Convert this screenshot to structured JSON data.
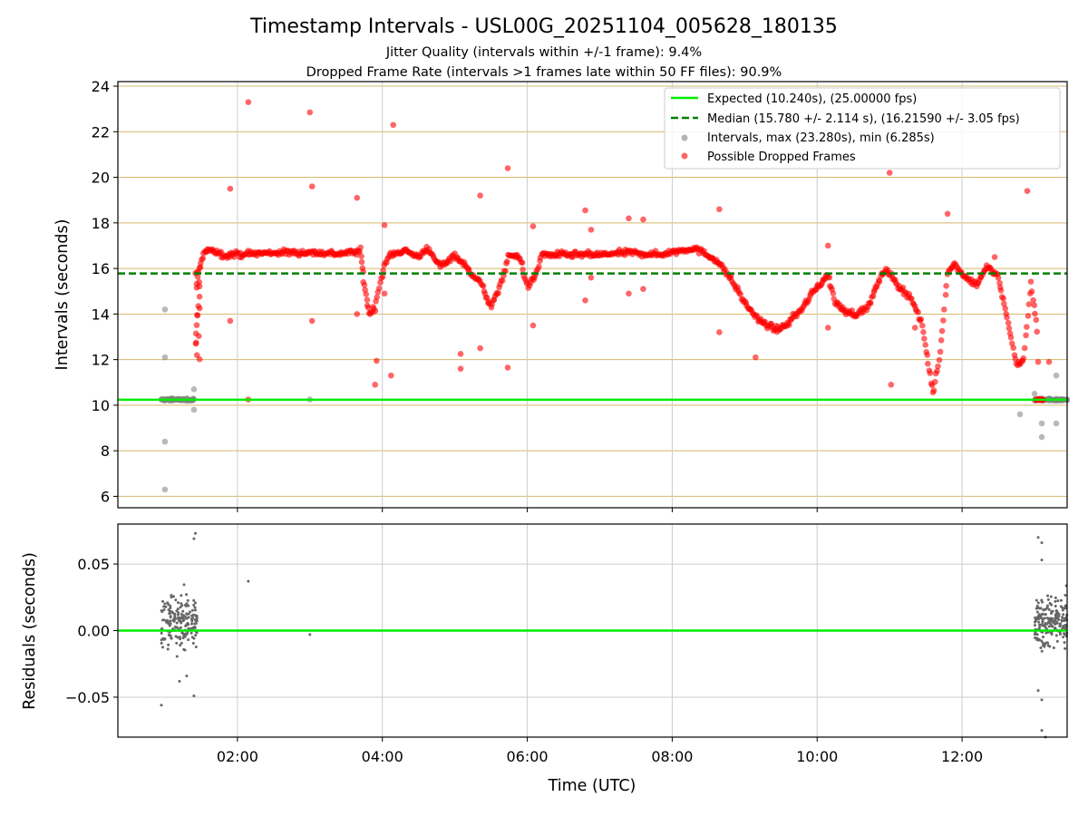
{
  "figure": {
    "title": "Timestamp Intervals - USL00G_20251104_005628_180135",
    "subtitle_1": "Jitter Quality (intervals within +/-1 frame): 9.4%",
    "subtitle_2": "Dropped Frame Rate (intervals >1 frames late within 50 FF files): 90.9%"
  },
  "colors": {
    "expected": "#00ee00",
    "median": "#008000",
    "intervals": "#808080",
    "dropped": "#ff0000",
    "hgrid": "#d4b86a",
    "vgrid": "#cccccc",
    "residual": "#666666"
  },
  "chart_data": [
    {
      "type": "scatter",
      "id": "intervals",
      "xlabel": "",
      "ylabel": "Intervals (seconds)",
      "x_unit": "hours UTC",
      "xlim": [
        0.35,
        13.45
      ],
      "ylim": [
        5.5,
        24.2
      ],
      "yticks": [
        6,
        8,
        10,
        12,
        14,
        16,
        18,
        20,
        22,
        24
      ],
      "xticks": [
        2,
        4,
        6,
        8,
        10,
        12
      ],
      "grid": true,
      "legend_position": "top-right",
      "legend": [
        "Expected (10.240s), (25.00000 fps)",
        "Median (15.780 +/- 2.114 s), (16.21590 +/- 3.05 fps)",
        "Intervals, max (23.280s), min (6.285s)",
        "Possible Dropped Frames"
      ],
      "expected_interval": 10.24,
      "median_interval": 15.78,
      "max_interval": 23.28,
      "min_interval": 6.285,
      "dropped_trend": [
        [
          1.45,
          15.7
        ],
        [
          1.52,
          16.5
        ],
        [
          1.6,
          16.9
        ],
        [
          1.8,
          16.6
        ],
        [
          2.2,
          16.65
        ],
        [
          2.6,
          16.7
        ],
        [
          3.0,
          16.7
        ],
        [
          3.4,
          16.65
        ],
        [
          3.7,
          16.75
        ],
        [
          3.75,
          15.3
        ],
        [
          3.82,
          14.0
        ],
        [
          3.9,
          14.3
        ],
        [
          4.0,
          15.8
        ],
        [
          4.1,
          16.6
        ],
        [
          4.3,
          16.8
        ],
        [
          4.5,
          16.5
        ],
        [
          4.6,
          16.9
        ],
        [
          4.8,
          16.1
        ],
        [
          5.0,
          16.6
        ],
        [
          5.2,
          15.9
        ],
        [
          5.35,
          15.4
        ],
        [
          5.5,
          14.3
        ],
        [
          5.6,
          15.0
        ],
        [
          5.75,
          16.6
        ],
        [
          5.9,
          16.5
        ],
        [
          6.0,
          15.2
        ],
        [
          6.1,
          15.6
        ],
        [
          6.2,
          16.6
        ],
        [
          6.6,
          16.6
        ],
        [
          7.0,
          16.6
        ],
        [
          7.4,
          16.7
        ],
        [
          7.8,
          16.6
        ],
        [
          8.3,
          16.9
        ],
        [
          8.6,
          16.4
        ],
        [
          8.8,
          15.6
        ],
        [
          9.0,
          14.5
        ],
        [
          9.2,
          13.7
        ],
        [
          9.45,
          13.3
        ],
        [
          9.6,
          13.6
        ],
        [
          9.8,
          14.3
        ],
        [
          10.0,
          15.2
        ],
        [
          10.15,
          15.7
        ],
        [
          10.25,
          14.5
        ],
        [
          10.4,
          14.1
        ],
        [
          10.55,
          14.0
        ],
        [
          10.7,
          14.3
        ],
        [
          10.85,
          15.4
        ],
        [
          10.95,
          16.0
        ],
        [
          11.1,
          15.3
        ],
        [
          11.3,
          14.7
        ],
        [
          11.45,
          13.5
        ],
        [
          11.6,
          10.5
        ],
        [
          11.7,
          12.3
        ],
        [
          11.8,
          15.8
        ],
        [
          11.9,
          16.2
        ],
        [
          12.05,
          15.6
        ],
        [
          12.2,
          15.3
        ],
        [
          12.35,
          16.1
        ],
        [
          12.5,
          15.6
        ],
        [
          12.65,
          13.4
        ],
        [
          12.75,
          11.8
        ],
        [
          12.85,
          12.0
        ],
        [
          12.95,
          15.4
        ],
        [
          13.05,
          13.0
        ]
      ],
      "gray_points": [
        [
          0.95,
          10.25
        ],
        [
          1.0,
          10.2
        ],
        [
          1.1,
          10.3
        ],
        [
          1.2,
          10.25
        ],
        [
          1.3,
          10.3
        ],
        [
          1.38,
          10.2
        ],
        [
          1.0,
          14.2
        ],
        [
          1.0,
          12.1
        ],
        [
          1.0,
          8.4
        ],
        [
          1.0,
          6.3
        ],
        [
          1.4,
          9.8
        ],
        [
          1.4,
          10.7
        ],
        [
          3.0,
          10.25
        ],
        [
          13.0,
          10.2
        ],
        [
          13.1,
          10.3
        ],
        [
          13.2,
          10.25
        ],
        [
          13.3,
          10.2
        ],
        [
          13.4,
          10.25
        ],
        [
          12.8,
          9.6
        ],
        [
          13.1,
          9.2
        ],
        [
          13.1,
          8.6
        ],
        [
          13.3,
          9.2
        ],
        [
          13.3,
          11.3
        ],
        [
          13.0,
          10.5
        ]
      ],
      "dropped_outliers": [
        [
          2.15,
          23.3
        ],
        [
          3.0,
          22.85
        ],
        [
          4.15,
          22.3
        ],
        [
          5.73,
          20.4
        ],
        [
          3.03,
          19.6
        ],
        [
          1.9,
          19.5
        ],
        [
          3.65,
          19.1
        ],
        [
          5.35,
          19.2
        ],
        [
          4.03,
          17.9
        ],
        [
          6.08,
          17.85
        ],
        [
          6.8,
          18.55
        ],
        [
          6.88,
          17.7
        ],
        [
          7.4,
          18.2
        ],
        [
          7.6,
          18.15
        ],
        [
          8.65,
          18.6
        ],
        [
          1.9,
          13.7
        ],
        [
          3.03,
          13.7
        ],
        [
          3.65,
          14.0
        ],
        [
          4.03,
          14.9
        ],
        [
          4.12,
          11.3
        ],
        [
          3.9,
          10.9
        ],
        [
          3.92,
          11.95
        ],
        [
          5.08,
          12.25
        ],
        [
          5.35,
          12.5
        ],
        [
          5.08,
          11.6
        ],
        [
          5.73,
          11.65
        ],
        [
          6.08,
          13.5
        ],
        [
          6.8,
          14.6
        ],
        [
          6.88,
          15.6
        ],
        [
          7.4,
          14.9
        ],
        [
          7.6,
          15.1
        ],
        [
          8.65,
          13.2
        ],
        [
          10.15,
          17.0
        ],
        [
          11.0,
          20.2
        ],
        [
          11.02,
          10.9
        ],
        [
          11.8,
          18.4
        ],
        [
          12.45,
          16.5
        ],
        [
          12.9,
          19.4
        ],
        [
          2.15,
          10.25
        ],
        [
          9.15,
          12.1
        ],
        [
          10.15,
          13.4
        ],
        [
          11.35,
          13.4
        ],
        [
          13.05,
          11.9
        ],
        [
          13.2,
          11.9
        ]
      ]
    },
    {
      "type": "scatter",
      "id": "residuals",
      "xlabel": "Time (UTC)",
      "ylabel": "Residuals (seconds)",
      "xlim": [
        0.35,
        13.45
      ],
      "ylim": [
        -0.08,
        0.08
      ],
      "yticks": [
        0.05,
        0.0,
        -0.05
      ],
      "ytick_labels": [
        "0.05",
        "0.00",
        "−0.05"
      ],
      "xticks": [
        2,
        4,
        6,
        8,
        10,
        12
      ],
      "xtick_labels": [
        "02:00",
        "04:00",
        "06:00",
        "08:00",
        "10:00",
        "12:00"
      ],
      "grid": true,
      "zero_line": 0.0,
      "clusters": [
        {
          "x_range": [
            0.95,
            1.45
          ],
          "y_range": [
            -0.03,
            0.045
          ],
          "count": 180
        },
        {
          "x_range": [
            13.0,
            13.45
          ],
          "y_range": [
            -0.025,
            0.04
          ],
          "count": 200
        }
      ],
      "outliers": [
        [
          0.95,
          -0.056
        ],
        [
          1.2,
          -0.038
        ],
        [
          1.3,
          -0.034
        ],
        [
          1.4,
          -0.049
        ],
        [
          1.4,
          0.069
        ],
        [
          1.42,
          0.073
        ],
        [
          2.15,
          0.037
        ],
        [
          3.0,
          -0.003
        ],
        [
          13.05,
          0.07
        ],
        [
          13.1,
          0.066
        ],
        [
          13.1,
          0.053
        ],
        [
          13.1,
          -0.052
        ],
        [
          13.05,
          -0.045
        ],
        [
          13.1,
          -0.075
        ],
        [
          13.15,
          -0.08
        ]
      ]
    }
  ]
}
